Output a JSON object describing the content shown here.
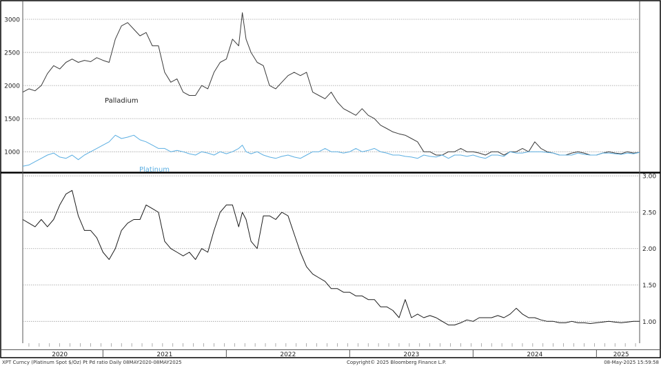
{
  "footer": {
    "left": "XPT Curncy (Platinum Spot  $/Oz) Pt Pd ratio  Daily 08MAY2020-08MAY2025",
    "center": "Copyright© 2025 Bloomberg Finance L.P.",
    "right": "08-May-2025  15:59:58"
  },
  "colors": {
    "palladium": "#3a3a3a",
    "platinum": "#5aaee2",
    "ratio": "#1a1a1a",
    "grid": "#9a9a9a",
    "frame": "#000000"
  },
  "chart_data": [
    {
      "type": "line",
      "ylim": [
        700,
        3250
      ],
      "yticks": [
        1000,
        1500,
        2000,
        2500,
        3000
      ],
      "ytick_labels": [
        "1000",
        "1500",
        "2000",
        "2500",
        "3000"
      ],
      "grid": true,
      "xlim": [
        2020.35,
        2025.35
      ],
      "series": [
        {
          "name": "Palladium",
          "x": [
            2020.35,
            2020.4,
            2020.45,
            2020.5,
            2020.55,
            2020.6,
            2020.65,
            2020.7,
            2020.75,
            2020.8,
            2020.85,
            2020.9,
            2020.95,
            2021.0,
            2021.05,
            2021.1,
            2021.15,
            2021.2,
            2021.25,
            2021.3,
            2021.35,
            2021.4,
            2021.45,
            2021.5,
            2021.55,
            2021.6,
            2021.65,
            2021.7,
            2021.75,
            2021.8,
            2021.85,
            2021.9,
            2021.95,
            2022.0,
            2022.05,
            2022.1,
            2022.13,
            2022.16,
            2022.2,
            2022.25,
            2022.3,
            2022.35,
            2022.4,
            2022.45,
            2022.5,
            2022.55,
            2022.6,
            2022.65,
            2022.7,
            2022.75,
            2022.8,
            2022.85,
            2022.9,
            2022.95,
            2023.0,
            2023.05,
            2023.1,
            2023.15,
            2023.2,
            2023.25,
            2023.3,
            2023.35,
            2023.4,
            2023.45,
            2023.5,
            2023.55,
            2023.6,
            2023.65,
            2023.7,
            2023.75,
            2023.8,
            2023.85,
            2023.9,
            2023.95,
            2024.0,
            2024.05,
            2024.1,
            2024.15,
            2024.2,
            2024.25,
            2024.3,
            2024.35,
            2024.4,
            2024.45,
            2024.5,
            2024.55,
            2024.6,
            2024.65,
            2024.7,
            2024.75,
            2024.8,
            2024.85,
            2024.9,
            2024.95,
            2025.0,
            2025.05,
            2025.1,
            2025.15,
            2025.2,
            2025.25,
            2025.3,
            2025.35
          ],
          "values": [
            1900,
            1950,
            1920,
            2000,
            2180,
            2300,
            2250,
            2350,
            2400,
            2350,
            2380,
            2360,
            2420,
            2380,
            2350,
            2700,
            2900,
            2950,
            2850,
            2750,
            2800,
            2600,
            2600,
            2200,
            2050,
            2100,
            1900,
            1850,
            1850,
            2000,
            1950,
            2200,
            2350,
            2400,
            2700,
            2600,
            3100,
            2700,
            2500,
            2350,
            2300,
            2000,
            1950,
            2050,
            2150,
            2200,
            2150,
            2200,
            1900,
            1850,
            1800,
            1900,
            1750,
            1650,
            1600,
            1550,
            1650,
            1550,
            1500,
            1400,
            1350,
            1300,
            1270,
            1250,
            1200,
            1150,
            1000,
            1000,
            950,
            950,
            1000,
            1000,
            1050,
            1000,
            1000,
            980,
            950,
            1000,
            1000,
            950,
            1000,
            1000,
            1050,
            1000,
            1150,
            1050,
            1000,
            980,
            950,
            950,
            980,
            1000,
            980,
            950,
            950,
            980,
            1000,
            980,
            970,
            1000,
            980,
            990
          ]
        },
        {
          "name": "Platinum",
          "x": [
            2020.35,
            2020.4,
            2020.45,
            2020.5,
            2020.55,
            2020.6,
            2020.65,
            2020.7,
            2020.75,
            2020.8,
            2020.85,
            2020.9,
            2020.95,
            2021.0,
            2021.05,
            2021.1,
            2021.15,
            2021.2,
            2021.25,
            2021.3,
            2021.35,
            2021.4,
            2021.45,
            2021.5,
            2021.55,
            2021.6,
            2021.65,
            2021.7,
            2021.75,
            2021.8,
            2021.85,
            2021.9,
            2021.95,
            2022.0,
            2022.05,
            2022.1,
            2022.13,
            2022.16,
            2022.2,
            2022.25,
            2022.3,
            2022.35,
            2022.4,
            2022.45,
            2022.5,
            2022.55,
            2022.6,
            2022.65,
            2022.7,
            2022.75,
            2022.8,
            2022.85,
            2022.9,
            2022.95,
            2023.0,
            2023.05,
            2023.1,
            2023.15,
            2023.2,
            2023.25,
            2023.3,
            2023.35,
            2023.4,
            2023.45,
            2023.5,
            2023.55,
            2023.6,
            2023.65,
            2023.7,
            2023.75,
            2023.8,
            2023.85,
            2023.9,
            2023.95,
            2024.0,
            2024.05,
            2024.1,
            2024.15,
            2024.2,
            2024.25,
            2024.3,
            2024.35,
            2024.4,
            2024.45,
            2024.5,
            2024.55,
            2024.6,
            2024.65,
            2024.7,
            2024.75,
            2024.8,
            2024.85,
            2024.9,
            2024.95,
            2025.0,
            2025.05,
            2025.1,
            2025.15,
            2025.2,
            2025.25,
            2025.3,
            2025.35
          ],
          "values": [
            780,
            800,
            850,
            900,
            950,
            980,
            920,
            900,
            950,
            880,
            950,
            1000,
            1050,
            1100,
            1150,
            1250,
            1200,
            1220,
            1250,
            1180,
            1150,
            1100,
            1050,
            1050,
            1000,
            1020,
            1000,
            970,
            950,
            1000,
            980,
            950,
            1000,
            970,
            1000,
            1050,
            1100,
            1000,
            970,
            1000,
            950,
            920,
            900,
            930,
            950,
            920,
            900,
            950,
            1000,
            1000,
            1050,
            1000,
            1000,
            980,
            1000,
            1050,
            1000,
            1020,
            1050,
            1000,
            980,
            950,
            950,
            930,
            920,
            900,
            950,
            930,
            920,
            950,
            900,
            950,
            950,
            930,
            950,
            920,
            900,
            950,
            950,
            930,
            1000,
            980,
            980,
            1000,
            1000,
            1000,
            990,
            980,
            950,
            950,
            950,
            980,
            960,
            950,
            950,
            980,
            980,
            970,
            960,
            980,
            970,
            990
          ]
        }
      ],
      "annotations": [
        "Palladium",
        "Platinum"
      ]
    },
    {
      "type": "line",
      "ylim": [
        0.7,
        3.03
      ],
      "yticks": [
        1.0,
        1.5,
        2.0,
        2.5,
        3.0
      ],
      "ytick_labels": [
        "1.00",
        "1.50",
        "2.00",
        "2.50",
        "3.00"
      ],
      "grid": true,
      "xlim": [
        2020.35,
        2025.35
      ],
      "x_tick_labels": [
        {
          "label": "2020",
          "x": 2020.65
        },
        {
          "label": "2021",
          "x": 2021.5
        },
        {
          "label": "2022",
          "x": 2022.5
        },
        {
          "label": "2023",
          "x": 2023.5
        },
        {
          "label": "2024",
          "x": 2024.5
        },
        {
          "label": "2025",
          "x": 2025.2
        }
      ],
      "x_separators": [
        2021.0,
        2022.0,
        2023.0,
        2024.0,
        2025.0
      ],
      "series": [
        {
          "name": "",
          "x": [
            2020.35,
            2020.4,
            2020.45,
            2020.5,
            2020.55,
            2020.6,
            2020.65,
            2020.7,
            2020.75,
            2020.8,
            2020.85,
            2020.9,
            2020.95,
            2021.0,
            2021.05,
            2021.1,
            2021.15,
            2021.2,
            2021.25,
            2021.3,
            2021.35,
            2021.4,
            2021.45,
            2021.5,
            2021.55,
            2021.6,
            2021.65,
            2021.7,
            2021.75,
            2021.8,
            2021.85,
            2021.9,
            2021.95,
            2022.0,
            2022.05,
            2022.1,
            2022.13,
            2022.16,
            2022.2,
            2022.25,
            2022.3,
            2022.35,
            2022.4,
            2022.45,
            2022.5,
            2022.55,
            2022.6,
            2022.65,
            2022.7,
            2022.75,
            2022.8,
            2022.85,
            2022.9,
            2022.95,
            2023.0,
            2023.05,
            2023.1,
            2023.15,
            2023.2,
            2023.25,
            2023.3,
            2023.35,
            2023.4,
            2023.45,
            2023.5,
            2023.55,
            2023.6,
            2023.65,
            2023.7,
            2023.75,
            2023.8,
            2023.85,
            2023.9,
            2023.95,
            2024.0,
            2024.05,
            2024.1,
            2024.15,
            2024.2,
            2024.25,
            2024.3,
            2024.35,
            2024.4,
            2024.45,
            2024.5,
            2024.55,
            2024.6,
            2024.65,
            2024.7,
            2024.75,
            2024.8,
            2024.85,
            2024.9,
            2024.95,
            2025.0,
            2025.05,
            2025.1,
            2025.15,
            2025.2,
            2025.25,
            2025.3,
            2025.35
          ],
          "values": [
            2.4,
            2.35,
            2.3,
            2.4,
            2.3,
            2.4,
            2.6,
            2.75,
            2.8,
            2.45,
            2.25,
            2.25,
            2.15,
            1.95,
            1.85,
            2.0,
            2.25,
            2.35,
            2.4,
            2.4,
            2.6,
            2.55,
            2.5,
            2.1,
            2.0,
            1.95,
            1.9,
            1.95,
            1.85,
            2.0,
            1.95,
            2.25,
            2.5,
            2.6,
            2.6,
            2.3,
            2.5,
            2.4,
            2.1,
            2.0,
            2.45,
            2.45,
            2.4,
            2.5,
            2.45,
            2.2,
            1.95,
            1.75,
            1.65,
            1.6,
            1.55,
            1.45,
            1.45,
            1.4,
            1.4,
            1.35,
            1.35,
            1.3,
            1.3,
            1.2,
            1.2,
            1.15,
            1.05,
            1.3,
            1.05,
            1.1,
            1.05,
            1.08,
            1.05,
            1.0,
            0.95,
            0.95,
            0.98,
            1.02,
            1.0,
            1.05,
            1.05,
            1.05,
            1.08,
            1.05,
            1.1,
            1.18,
            1.1,
            1.05,
            1.05,
            1.02,
            1.0,
            1.0,
            0.98,
            0.98,
            1.0,
            0.98,
            0.98,
            0.97,
            0.98,
            0.99,
            1.0,
            0.99,
            0.98,
            0.99,
            1.0,
            1.0
          ]
        }
      ]
    }
  ]
}
